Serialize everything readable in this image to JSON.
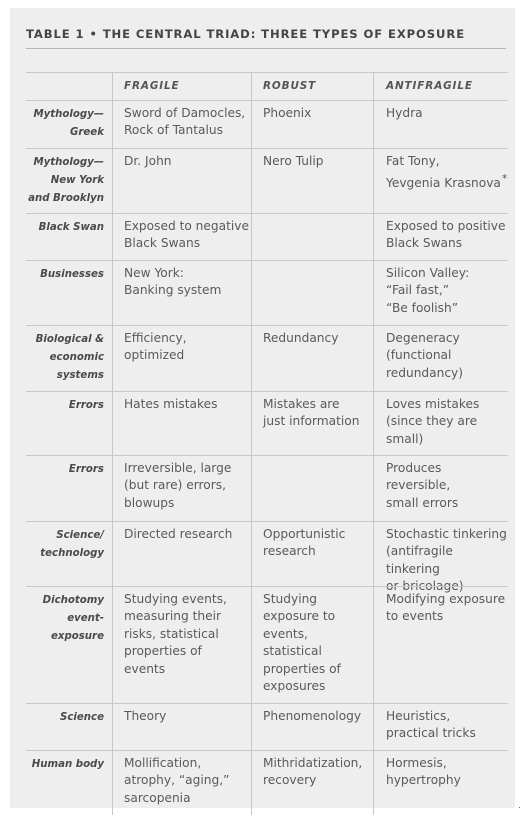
{
  "table": {
    "title": "TABLE 1  •  THE CENTRAL TRIAD: THREE TYPES OF EXPOSURE",
    "columns": [
      "",
      "FRAGILE",
      "ROBUST",
      "ANTIFRAGILE"
    ],
    "rows": [
      {
        "label": [
          "Mythology—",
          "Greek"
        ],
        "fragile": [
          "Sword of Damocles,",
          "Rock of Tantalus"
        ],
        "robust": [
          "Phoenix"
        ],
        "antifragile": [
          "Hydra"
        ]
      },
      {
        "label": [
          "Mythology—",
          "New York",
          "and Brooklyn"
        ],
        "fragile": [
          "Dr. John"
        ],
        "robust": [
          "Nero Tulip"
        ],
        "antifragile": [
          "Fat Tony,",
          "Yevgenia Krasnova"
        ],
        "antifragile_mark": "*"
      },
      {
        "label": [
          "Black Swan"
        ],
        "fragile": [
          "Exposed to negative",
          "Black Swans"
        ],
        "robust": [],
        "antifragile": [
          "Exposed to positive",
          "Black Swans"
        ]
      },
      {
        "label": [
          "Businesses"
        ],
        "fragile": [
          "New York:",
          "Banking system"
        ],
        "robust": [],
        "antifragile": [
          "Silicon Valley:",
          "“Fail fast,”",
          "“Be foolish”"
        ]
      },
      {
        "label": [
          "Biological &",
          "economic",
          "systems"
        ],
        "fragile": [
          "Efficiency,",
          "optimized"
        ],
        "robust": [
          "Redundancy"
        ],
        "antifragile": [
          "Degeneracy",
          "(functional",
          "redundancy)"
        ]
      },
      {
        "label": [
          "Errors"
        ],
        "fragile": [
          "Hates mistakes"
        ],
        "robust": [
          "Mistakes are",
          "just information"
        ],
        "antifragile": [
          "Loves mistakes",
          "(since they are",
          "small)"
        ]
      },
      {
        "label": [
          "Errors"
        ],
        "fragile": [
          "Irreversible, large",
          "(but rare) errors,",
          "blowups"
        ],
        "robust": [],
        "antifragile": [
          "Produces reversible,",
          "small errors"
        ]
      },
      {
        "label": [
          "Science/",
          "technology"
        ],
        "fragile": [
          "Directed research"
        ],
        "robust": [
          "Opportunistic",
          "research"
        ],
        "antifragile": [
          "Stochastic tinkering",
          "(antifragile tinkering",
          "or bricolage)"
        ]
      },
      {
        "label": [
          "Dichotomy",
          "event-",
          "exposure"
        ],
        "fragile": [
          "Studying events,",
          "measuring their",
          "risks, statistical",
          "properties of",
          "events"
        ],
        "robust": [
          "Studying",
          "exposure to",
          "events,",
          "statistical",
          "properties of",
          "exposures"
        ],
        "antifragile": [
          "Modifying exposure",
          "to events"
        ]
      },
      {
        "label": [
          "Science"
        ],
        "fragile": [
          "Theory"
        ],
        "robust": [
          "Phenomenology"
        ],
        "antifragile": [
          "Heuristics,",
          "practical tricks"
        ]
      },
      {
        "label": [
          "Human body"
        ],
        "fragile": [
          "Mollification,",
          "atrophy, “aging,”",
          "sarcopenia"
        ],
        "robust": [
          "Mithridatization,",
          "recovery"
        ],
        "antifragile": [
          "Hormesis,",
          "hypertrophy"
        ]
      }
    ]
  }
}
